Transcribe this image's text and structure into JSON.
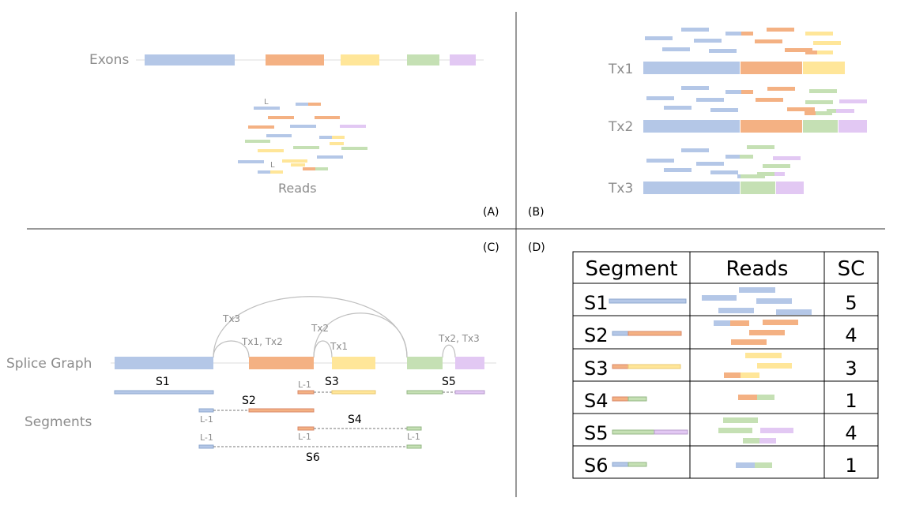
{
  "colors": {
    "blue": "#b4c7e7",
    "orange": "#f4b183",
    "yellow": "#ffe699",
    "green": "#c5e0b4",
    "purple": "#e2c8f3",
    "blue_dark": "#8fa9cf",
    "orange_dark": "#d9896a",
    "yellow_dark": "#e9c873",
    "green_dark": "#95b786",
    "purple_dark": "#b89ccc"
  },
  "panel_a": {
    "exons_label": "Exons",
    "reads_label": "Reads",
    "l_marker": "L",
    "tag": "(A)"
  },
  "panel_b": {
    "tag": "(B)",
    "transcripts": [
      "Tx1",
      "Tx2",
      "Tx3"
    ]
  },
  "panel_c": {
    "tag": "(C)",
    "splice_graph_label": "Splice Graph",
    "segments_label": "Segments",
    "arc_labels": [
      "Tx3",
      "Tx1, Tx2",
      "Tx2",
      "Tx1",
      "Tx2, Tx3"
    ],
    "segment_labels": [
      "S1",
      "S2",
      "S3",
      "S4",
      "S5",
      "S6"
    ],
    "lm1": "L-1"
  },
  "panel_d": {
    "tag": "(D)",
    "headers": [
      "Segment",
      "Reads",
      "SC"
    ],
    "rows": [
      {
        "segment": "S1",
        "sc": "5"
      },
      {
        "segment": "S2",
        "sc": "4"
      },
      {
        "segment": "S3",
        "sc": "3"
      },
      {
        "segment": "S4",
        "sc": "1"
      },
      {
        "segment": "S5",
        "sc": "4"
      },
      {
        "segment": "S6",
        "sc": "1"
      }
    ]
  }
}
